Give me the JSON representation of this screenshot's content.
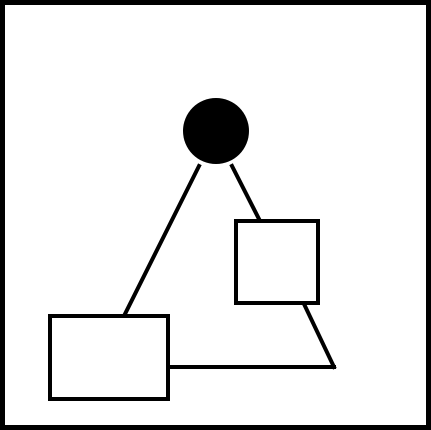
{
  "diagram": {
    "nodes": [
      {
        "id": "circle-node",
        "shape": "circle",
        "fill": "#000000"
      },
      {
        "id": "right-square",
        "shape": "rectangle",
        "fill": "#ffffff"
      },
      {
        "id": "bottom-left-rectangle",
        "shape": "rectangle",
        "fill": "#ffffff"
      }
    ],
    "edges": [
      {
        "from": "circle-node",
        "to": "bottom-left-rectangle"
      },
      {
        "from": "circle-node",
        "to": "right-square"
      },
      {
        "from": "right-square",
        "to": "triangle-corner"
      },
      {
        "from": "bottom-left-rectangle",
        "to": "triangle-corner"
      }
    ],
    "colors": {
      "stroke": "#000000",
      "background": "#ffffff"
    }
  }
}
